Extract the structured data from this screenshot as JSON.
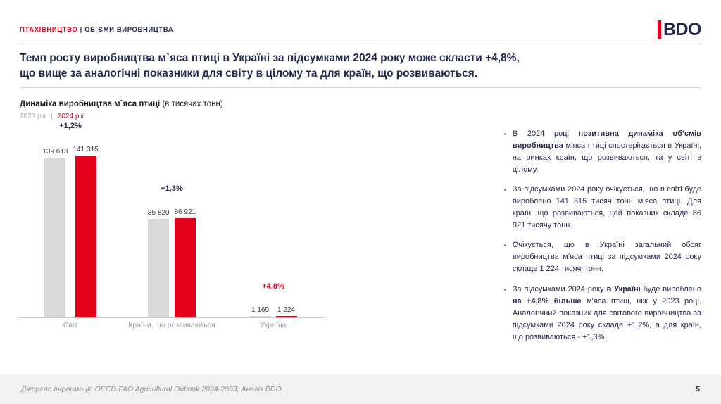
{
  "colors": {
    "accent_red": "#e2001a",
    "navy": "#252a4d",
    "bar_gray": "#d9d9d9",
    "legend_gray": "#a6a6a6"
  },
  "header": {
    "section_red": "ПТАХІВНИЦТВО",
    "section_rest": " | ОБ`ЄМИ ВИРОБНИЦТВА",
    "logo_text": "BDO"
  },
  "title": {
    "line1": "Темп росту виробництва м`яса птиці в Україні за підсумками 2024 року може скласти +4,8%,",
    "line2": "що вище за аналогічні показники для світу в цілому та для країн, що розвиваються."
  },
  "chart_header": {
    "title_bold": "Динаміка виробництва м`яса птиці",
    "title_rest": " (в тисячах тонн)",
    "legend": [
      {
        "label": "2023 рік",
        "color": "#a6a6a6"
      },
      {
        "label": "2024 рік",
        "color": "#e2001a"
      }
    ]
  },
  "chart_data": {
    "type": "bar",
    "title": "Динаміка виробництва м`яса птиці (в тисячах тонн)",
    "categories": [
      "Світ",
      "Країни, що розвиваються",
      "Україна"
    ],
    "series": [
      {
        "name": "2023 рік",
        "color": "#d9d9d9",
        "values": [
          139613,
          85820,
          1169
        ]
      },
      {
        "name": "2024 рік",
        "color": "#e2001a",
        "values": [
          141315,
          86921,
          1224
        ]
      }
    ],
    "value_labels": [
      [
        "139 613",
        "141 315"
      ],
      [
        "85 820",
        "86 921"
      ],
      [
        "1 169",
        "1 224"
      ]
    ],
    "growth_labels": [
      "+1,2%",
      "+1,3%",
      "+4,8%"
    ],
    "growth_colors": [
      "#252a4d",
      "#252a4d",
      "#e2001a"
    ],
    "ylim": [
      0,
      141315
    ],
    "legend_position": "top-left",
    "grid": false
  },
  "bullets": [
    {
      "segments": [
        {
          "t": "В 2024 році ",
          "b": false
        },
        {
          "t": "позитивна динаміка об’ємів виробництва",
          "b": true
        },
        {
          "t": " м’яса птиці спостерігається в Україні, на ринках країн, що розвиваються, та у світі в цілому.",
          "b": false
        }
      ]
    },
    {
      "segments": [
        {
          "t": "За підсумками 2024 року очікується, що в світі буде вироблено 141 315 тисяч тонн м’яса птиці. Для країн, що розвиваються, цей показник складе 86 921 тисячу тонн.",
          "b": false
        }
      ]
    },
    {
      "segments": [
        {
          "t": "Очікується, що в Україні загальний обсяг виробництва м’яса птиці за підсумками 2024 року складе 1 224 тисячі тонн.",
          "b": false
        }
      ]
    },
    {
      "segments": [
        {
          "t": "За підсумками 2024 року ",
          "b": false
        },
        {
          "t": "в Україні",
          "b": true
        },
        {
          "t": " буде вироблено ",
          "b": false
        },
        {
          "t": "на +4,8% більше",
          "b": true
        },
        {
          "t": " м’яса птиці, ніж у 2023 році. Аналогічний показник для світового виробництва за підсумками 2024 року складе +1,2%, а для країн, що розвиваються - +1,3%.",
          "b": false
        }
      ]
    }
  ],
  "footer": {
    "source": "Джерело інформації: OECD-FAO Agricultural Outlook 2024-2033; Аналіз BDO.",
    "page": "5"
  }
}
